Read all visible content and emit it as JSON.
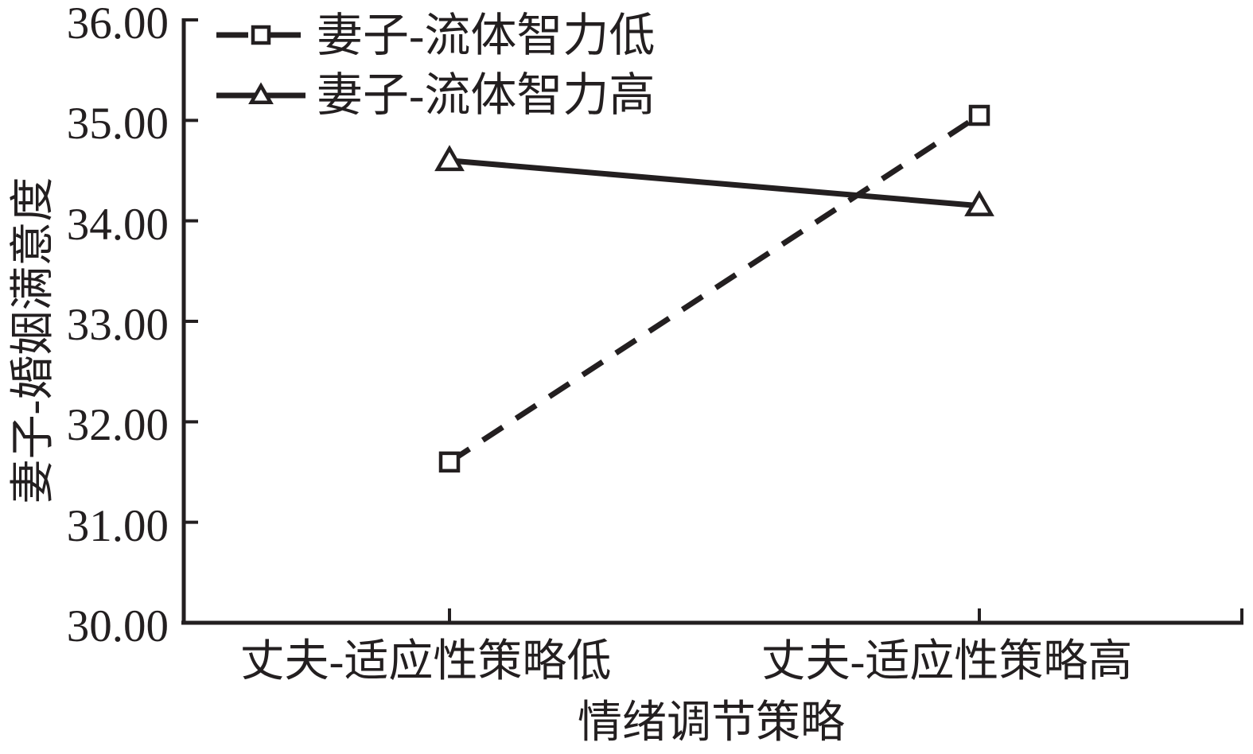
{
  "chart_data": {
    "type": "line",
    "title": "",
    "xlabel": "情绪调节策略",
    "ylabel": "妻子-婚姻满意度",
    "categories": [
      "丈夫-适应性策略低",
      "丈夫-适应性策略高"
    ],
    "y_ticks": [
      "36.00",
      "35.00",
      "34.00",
      "33.00",
      "32.00",
      "31.00",
      "30.00"
    ],
    "ylim": [
      30,
      36
    ],
    "ytick_step": 1,
    "grid": false,
    "legend_position": "top-left-inside",
    "ink_color": "#231f20",
    "background_color": "#ffffff",
    "series": [
      {
        "name": "妻子-流体智力低",
        "values": [
          31.6,
          35.05
        ],
        "line_style": "dashed",
        "marker": "square"
      },
      {
        "name": "妻子-流体智力高",
        "values": [
          34.6,
          34.15
        ],
        "line_style": "solid",
        "marker": "triangle"
      }
    ]
  }
}
